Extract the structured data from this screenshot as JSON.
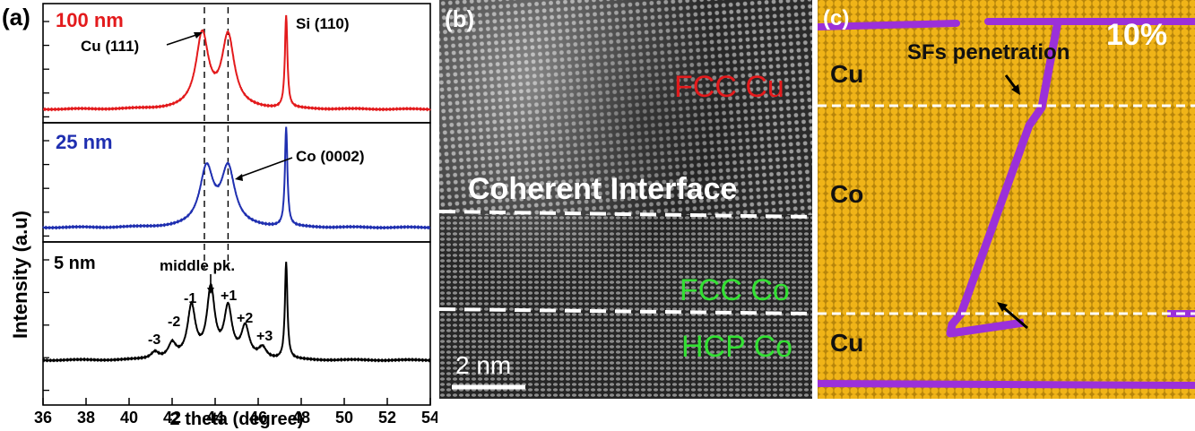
{
  "panel_a": {
    "label": "(a)",
    "ylabel": "Intensity (a.u)",
    "xlabel": "2 theta (degree)",
    "x_ticks": [
      "36",
      "38",
      "40",
      "42",
      "44",
      "46",
      "48",
      "50",
      "52",
      "54"
    ],
    "xlim": [
      36,
      54
    ],
    "dashed_lines_x": [
      43.5,
      44.6
    ],
    "colors": {
      "100nm": "#e31a1c",
      "25nm": "#1f2fb0",
      "5nm": "#000000"
    },
    "subplots": [
      {
        "name": "100 nm",
        "color": "#e31a1c",
        "annotations": [
          "Cu (111)",
          "Si (110)"
        ]
      },
      {
        "name": "25 nm",
        "color": "#1f2fb0",
        "annotations": [
          "Co (0002)"
        ]
      },
      {
        "name": "5 nm",
        "color": "#000000",
        "annotations": [
          "middle pk.",
          "-3",
          "-2",
          "-1",
          "+1",
          "+2",
          "+3"
        ]
      }
    ]
  },
  "chart_data": [
    {
      "type": "line",
      "xlabel": "2 theta (degree)",
      "ylabel": "Intensity (a.u)",
      "xlim": [
        36,
        54
      ],
      "series": [
        {
          "name": "100 nm",
          "peaks": [
            {
              "x": 43.4,
              "h": 0.78
            },
            {
              "x": 44.6,
              "h": 0.76
            },
            {
              "x": 47.3,
              "h": 0.98
            }
          ]
        },
        {
          "name": "25 nm",
          "peaks": [
            {
              "x": 43.6,
              "h": 0.58
            },
            {
              "x": 44.6,
              "h": 0.58
            },
            {
              "x": 47.3,
              "h": 1.0
            }
          ]
        },
        {
          "name": "5 nm",
          "peaks": [
            {
              "x": 41.2,
              "h": 0.07
            },
            {
              "x": 42.0,
              "h": 0.15
            },
            {
              "x": 42.9,
              "h": 0.52
            },
            {
              "x": 43.8,
              "h": 0.7
            },
            {
              "x": 44.6,
              "h": 0.5
            },
            {
              "x": 45.4,
              "h": 0.31
            },
            {
              "x": 46.2,
              "h": 0.11
            },
            {
              "x": 47.3,
              "h": 0.98
            }
          ]
        }
      ]
    }
  ],
  "panel_b": {
    "label": "(b)",
    "fcc_cu": "FCC Cu",
    "interface": "Coherent Interface",
    "fcc_co": "FCC Co",
    "hcp_co": "HCP Co",
    "scale": "2 nm"
  },
  "panel_c": {
    "label": "(c)",
    "percent": "10%",
    "sf_label": "SFs penetration",
    "cu_top": "Cu",
    "co": "Co",
    "cu_bottom": "Cu"
  }
}
